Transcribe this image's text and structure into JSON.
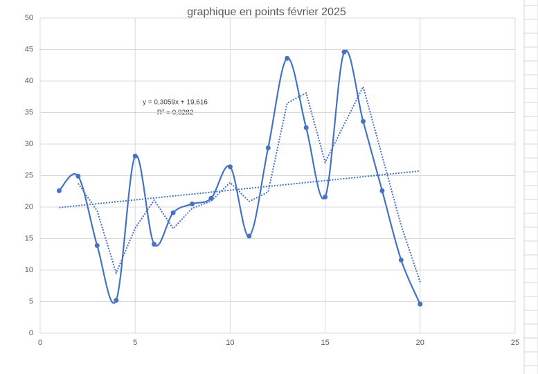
{
  "chart_data": {
    "type": "scatter",
    "title": "graphique en points février 2025",
    "x": [
      1,
      2,
      3,
      4,
      5,
      6,
      7,
      8,
      9,
      10,
      11,
      12,
      13,
      14,
      15,
      16,
      17,
      18,
      19,
      20
    ],
    "series": [
      {
        "color": "#4472c4",
        "smooth": true,
        "values": [
          22.6,
          24.9,
          13.9,
          5.2,
          28.1,
          14.1,
          19.1,
          20.5,
          21.4,
          26.4,
          15.4,
          29.4,
          43.6,
          32.6,
          21.6,
          44.6,
          33.6,
          22.6,
          11.6,
          4.6
        ]
      }
    ],
    "moving_average": {
      "x": [
        2,
        3,
        4,
        5,
        6,
        7,
        8,
        9,
        10,
        11,
        12,
        13,
        14,
        15,
        16,
        17,
        18,
        19,
        20
      ],
      "values": [
        23.75,
        19.4,
        9.55,
        16.65,
        21.1,
        16.6,
        19.8,
        20.95,
        23.9,
        20.9,
        22.4,
        36.5,
        38.1,
        27.1,
        33.1,
        39.1,
        28.1,
        17.1,
        8.1
      ]
    },
    "trendline": {
      "x": [
        1,
        20
      ],
      "values": [
        19.92,
        25.73
      ]
    },
    "annotations": [
      "y = 0,3059x + 19,616",
      "R² = 0,0282"
    ],
    "xlim": [
      0,
      25
    ],
    "xticks": [
      0,
      5,
      10,
      15,
      20,
      25
    ],
    "ylim": [
      0,
      50
    ],
    "yticks": [
      0,
      5,
      10,
      15,
      20,
      25,
      30,
      35,
      40,
      45,
      50
    ],
    "grid": true
  }
}
